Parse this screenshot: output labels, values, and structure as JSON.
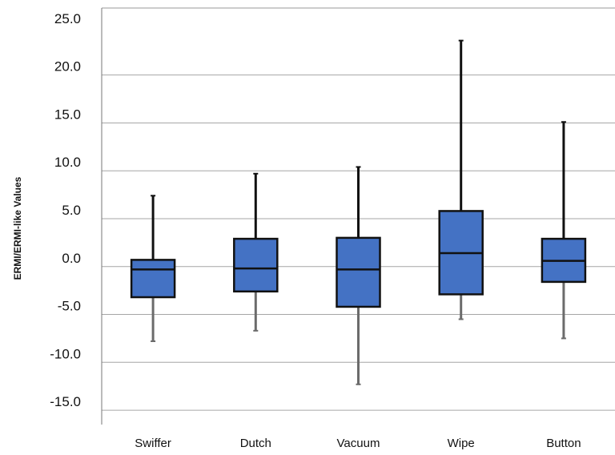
{
  "chart_data": {
    "type": "boxplot",
    "title": "",
    "xlabel": "",
    "ylabel": "ERMI/ERMI-like Values",
    "ylim": [
      -15,
      25
    ],
    "y_ticks": [
      25,
      20,
      15,
      10,
      5,
      0,
      -5,
      -10,
      -15
    ],
    "y_tick_labels": [
      "25.0",
      "20.0",
      "15.0",
      "10.0",
      "5.0",
      "0.0",
      "-5.0",
      "-10.0",
      "-15.0"
    ],
    "grid": true,
    "legend": "none",
    "box_color": "#4472c4",
    "categories": [
      "Swiffer",
      "Dutch",
      "Vacuum",
      "Wipe",
      "Button"
    ],
    "boxes": [
      {
        "category": "Swiffer",
        "whisker_low": -7.8,
        "q1": -3.2,
        "median": -0.3,
        "q3": 0.7,
        "whisker_high": 7.4
      },
      {
        "category": "Dutch",
        "whisker_low": -6.7,
        "q1": -2.6,
        "median": -0.2,
        "q3": 2.9,
        "whisker_high": 9.7
      },
      {
        "category": "Vacuum",
        "whisker_low": -12.3,
        "q1": -4.2,
        "median": -0.3,
        "q3": 3.0,
        "whisker_high": 10.4
      },
      {
        "category": "Wipe",
        "whisker_low": -5.5,
        "q1": -2.9,
        "median": 1.4,
        "q3": 5.8,
        "whisker_high": 23.6
      },
      {
        "category": "Button",
        "whisker_low": -7.5,
        "q1": -1.6,
        "median": 0.6,
        "q3": 2.9,
        "whisker_high": 15.1
      }
    ]
  }
}
